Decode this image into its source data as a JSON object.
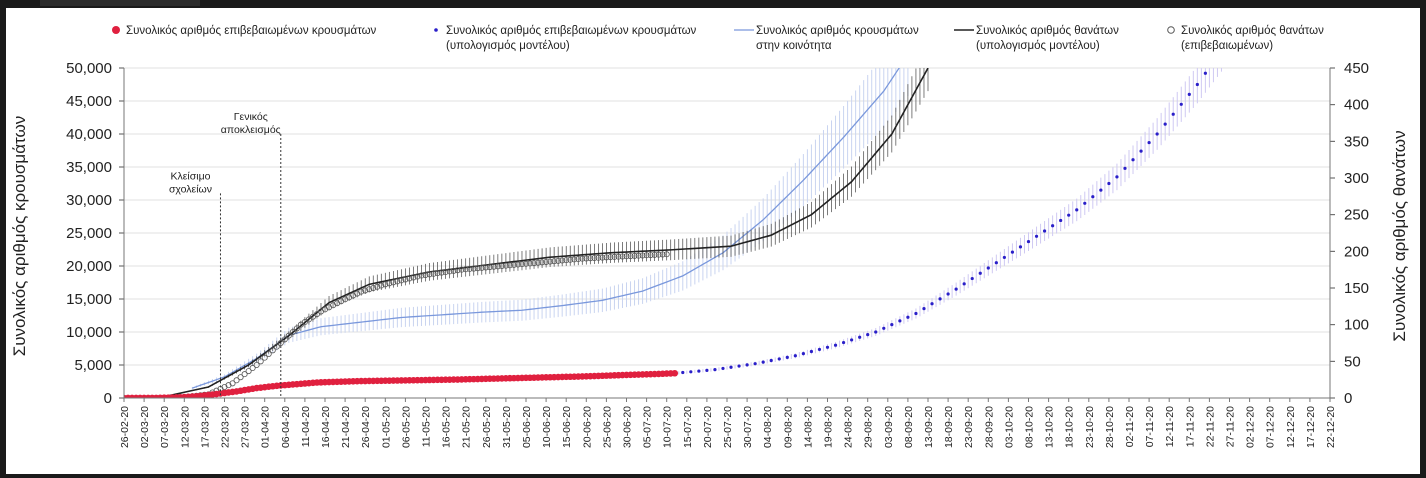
{
  "colors": {
    "confirmed": "#e0203f",
    "confirmed_model": "#2a1fc9",
    "community": "#7a98dc",
    "community_err": "#c9d4f0",
    "deaths_model": "#222222",
    "deaths_err": "#444444",
    "deaths_obs": "#555555",
    "grid": "#e2e2e2"
  },
  "chart_data": {
    "type": "line",
    "legend": [
      {
        "key": "confirmed",
        "line1": "Συνολικός αριθμός επιβεβαιωμένων κρουσμάτων",
        "line2": ""
      },
      {
        "key": "confirmed_model",
        "line1": "Συνολικός αριθμός επιβεβαιωμένων κρουσμάτων",
        "line2": "(υπολογισμός μοντέλου)"
      },
      {
        "key": "community",
        "line1": "Συνολικός αριθμός κρουσμάτων",
        "line2": "στην κοινότητα"
      },
      {
        "key": "deaths_model",
        "line1": "Συνολικός αριθμός θανάτων",
        "line2": "(υπολογισμός μοντέλου)"
      },
      {
        "key": "deaths_obs",
        "line1": "Συνολικός αριθμός θανάτων",
        "line2": "(επιβεβαιωμένων)"
      }
    ],
    "ylabel_left": "Συνολικός αριθμός κρουσμάτων",
    "ylabel_right": "Συνολικός αριθμός θανάτων",
    "ylim_left": [
      0,
      50000
    ],
    "ylim_right": [
      0,
      450
    ],
    "yticks_left": [
      "0",
      "5,000",
      "10,000",
      "15,000",
      "20,000",
      "25,000",
      "30,000",
      "35,000",
      "40,000",
      "45,000",
      "50,000"
    ],
    "yticks_right": [
      "0",
      "50",
      "100",
      "150",
      "200",
      "250",
      "300",
      "350",
      "400",
      "450"
    ],
    "x_start": "2020-02-26",
    "x_end": "2020-12-22",
    "x_tick_labels": [
      "26-02-20",
      "02-03-20",
      "07-03-20",
      "12-03-20",
      "17-03-20",
      "22-03-20",
      "27-03-20",
      "01-04-20",
      "06-04-20",
      "11-04-20",
      "16-04-20",
      "21-04-20",
      "26-04-20",
      "01-05-20",
      "06-05-20",
      "11-05-20",
      "16-05-20",
      "21-05-20",
      "26-05-20",
      "31-05-20",
      "05-06-20",
      "10-06-20",
      "15-06-20",
      "20-06-20",
      "25-06-20",
      "30-06-20",
      "05-07-20",
      "10-07-20",
      "15-07-20",
      "20-07-20",
      "25-07-20",
      "30-07-20",
      "04-08-20",
      "09-08-20",
      "14-08-20",
      "19-08-20",
      "24-08-20",
      "29-08-20",
      "03-09-20",
      "08-09-20",
      "13-09-20",
      "18-09-20",
      "23-09-20",
      "28-09-20",
      "03-10-20",
      "08-10-20",
      "13-10-20",
      "18-10-20",
      "23-10-20",
      "28-10-20",
      "02-11-20",
      "07-11-20",
      "12-11-20",
      "17-11-20",
      "22-11-20",
      "27-11-20",
      "02-12-20",
      "07-12-20",
      "12-12-20",
      "17-12-20",
      "22-12-20"
    ],
    "annotations": [
      {
        "date": "2020-03-21",
        "line1": "Κλείσιμο",
        "line2": "σχολείων",
        "ytop": 31000
      },
      {
        "date": "2020-04-05",
        "line1": "Γενικός",
        "line2": "αποκλεισμός",
        "ytop": 40000
      }
    ],
    "series": [
      {
        "key": "confirmed",
        "axis": "left",
        "style": "dots",
        "x": [
          "2020-02-26",
          "2020-03-05",
          "2020-03-10",
          "2020-03-15",
          "2020-03-20",
          "2020-03-25",
          "2020-03-30",
          "2020-04-04",
          "2020-04-09",
          "2020-04-14",
          "2020-04-19",
          "2020-04-24",
          "2020-04-29",
          "2020-05-09",
          "2020-05-19",
          "2020-05-29",
          "2020-06-08",
          "2020-06-18",
          "2020-06-28",
          "2020-07-08",
          "2020-07-12"
        ],
        "y": [
          0,
          20,
          80,
          250,
          600,
          1000,
          1500,
          1850,
          2100,
          2350,
          2450,
          2550,
          2600,
          2700,
          2800,
          2950,
          3100,
          3250,
          3450,
          3650,
          3750
        ]
      },
      {
        "key": "confirmed_model",
        "axis": "left",
        "style": "dots",
        "err_pct": 0.06,
        "x": [
          "2020-07-12",
          "2020-07-22",
          "2020-08-01",
          "2020-08-11",
          "2020-08-21",
          "2020-08-31",
          "2020-09-10",
          "2020-09-20",
          "2020-09-30",
          "2020-10-10",
          "2020-10-20",
          "2020-10-30",
          "2020-11-09",
          "2020-11-19",
          "2020-11-29"
        ],
        "y": [
          3750,
          4300,
          5200,
          6400,
          8000,
          10000,
          12800,
          16500,
          20500,
          24500,
          28500,
          33500,
          40000,
          47500,
          56000
        ]
      },
      {
        "key": "community",
        "axis": "left",
        "style": "line",
        "err_pct": 0.12,
        "x": [
          "2020-03-14",
          "2020-03-22",
          "2020-03-30",
          "2020-04-07",
          "2020-04-15",
          "2020-04-25",
          "2020-05-05",
          "2020-05-15",
          "2020-05-25",
          "2020-06-04",
          "2020-06-14",
          "2020-06-24",
          "2020-07-04",
          "2020-07-14",
          "2020-07-24",
          "2020-08-03",
          "2020-08-13",
          "2020-08-23",
          "2020-09-02",
          "2020-09-08"
        ],
        "y": [
          1500,
          3200,
          6000,
          9500,
          10800,
          11500,
          12200,
          12600,
          13000,
          13300,
          14000,
          14800,
          16200,
          18500,
          22000,
          27000,
          33000,
          39500,
          46500,
          52000
        ]
      },
      {
        "key": "deaths_model",
        "axis": "right",
        "style": "line",
        "err_pct": 0.07,
        "x": [
          "2020-02-26",
          "2020-03-08",
          "2020-03-18",
          "2020-03-28",
          "2020-04-07",
          "2020-04-17",
          "2020-04-27",
          "2020-05-12",
          "2020-05-27",
          "2020-06-11",
          "2020-06-26",
          "2020-07-11",
          "2020-07-26",
          "2020-08-05",
          "2020-08-15",
          "2020-08-25",
          "2020-09-04",
          "2020-09-13"
        ],
        "y": [
          0,
          3,
          15,
          45,
          85,
          130,
          155,
          172,
          182,
          192,
          198,
          202,
          207,
          222,
          250,
          295,
          360,
          450
        ]
      },
      {
        "key": "deaths_obs",
        "axis": "right",
        "style": "circles",
        "x": [
          "2020-03-10",
          "2020-03-18",
          "2020-03-24",
          "2020-03-30",
          "2020-04-05",
          "2020-04-10",
          "2020-04-15",
          "2020-04-20",
          "2020-04-25",
          "2020-05-01",
          "2020-05-10",
          "2020-05-20",
          "2020-05-30",
          "2020-06-09",
          "2020-06-19",
          "2020-06-29",
          "2020-07-10"
        ],
        "y": [
          0,
          5,
          20,
          45,
          75,
          100,
          118,
          132,
          145,
          155,
          167,
          175,
          180,
          185,
          190,
          193,
          196
        ]
      }
    ]
  }
}
